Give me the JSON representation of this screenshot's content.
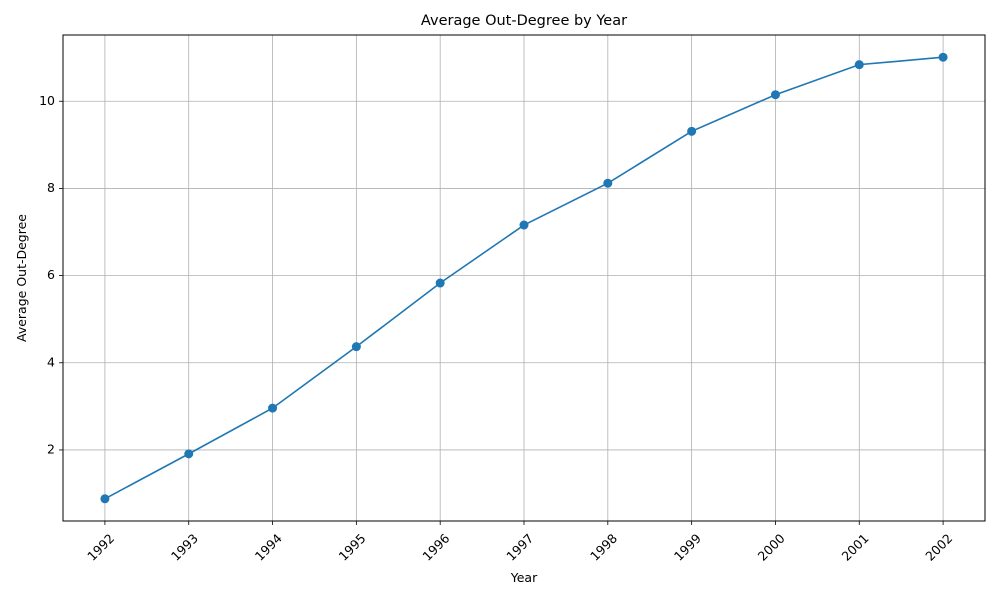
{
  "chart_data": {
    "type": "line",
    "title": "Average Out-Degree by Year",
    "xlabel": "Year",
    "ylabel": "Average Out-Degree",
    "x": [
      "1992",
      "1993",
      "1994",
      "1995",
      "1996",
      "1997",
      "1998",
      "1999",
      "2000",
      "2001",
      "2002"
    ],
    "series": [
      {
        "values": [
          0.88,
          1.91,
          2.96,
          4.37,
          5.83,
          7.16,
          8.12,
          9.31,
          10.15,
          10.84,
          11.01
        ],
        "color": "#1f77b4",
        "marker": "circle"
      }
    ],
    "ylim": [
      0.37,
      11.52
    ],
    "yticks": [
      2,
      4,
      6,
      8,
      10
    ],
    "grid": true,
    "xtick_rotation": 45
  }
}
